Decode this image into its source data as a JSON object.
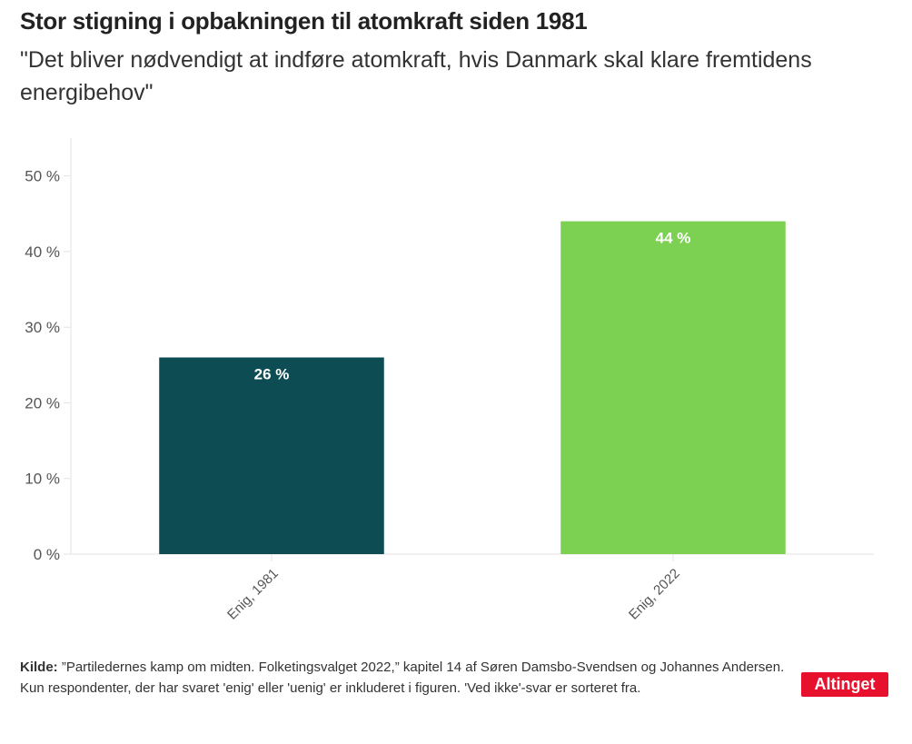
{
  "header": {
    "title": "Stor stigning i opbakningen til atomkraft siden 1981",
    "subtitle": "\"Det bliver nødvendigt at indføre atomkraft, hvis Danmark skal klare fremtidens energibehov\""
  },
  "chart_data": {
    "type": "bar",
    "categories": [
      "Enig, 1981",
      "Enig, 2022"
    ],
    "values": [
      26,
      44
    ],
    "data_labels": [
      "26 %",
      "44 %"
    ],
    "bar_colors": [
      "#0c4c52",
      "#7dd152"
    ],
    "ylim": [
      0,
      55
    ],
    "yticks": [
      0,
      10,
      20,
      30,
      40,
      50
    ],
    "ytick_labels": [
      "0 %",
      "10 %",
      "20 %",
      "30 %",
      "40 %",
      "50 %"
    ],
    "grid": false,
    "xlabel": "",
    "ylabel": ""
  },
  "footer": {
    "source_label": "Kilde:",
    "source_text": " ”Partiledernes kamp om midten. Folketingsvalget 2022,” kapitel 14 af Søren Damsbo-Svendsen og Johannes Andersen.",
    "note": "Kun respondenter, der har svaret 'enig' eller 'uenig' er inkluderet i figuren. 'Ved ikke'-svar er sorteret fra."
  },
  "logo": {
    "text": "Altinget",
    "color": "#e8112d"
  }
}
